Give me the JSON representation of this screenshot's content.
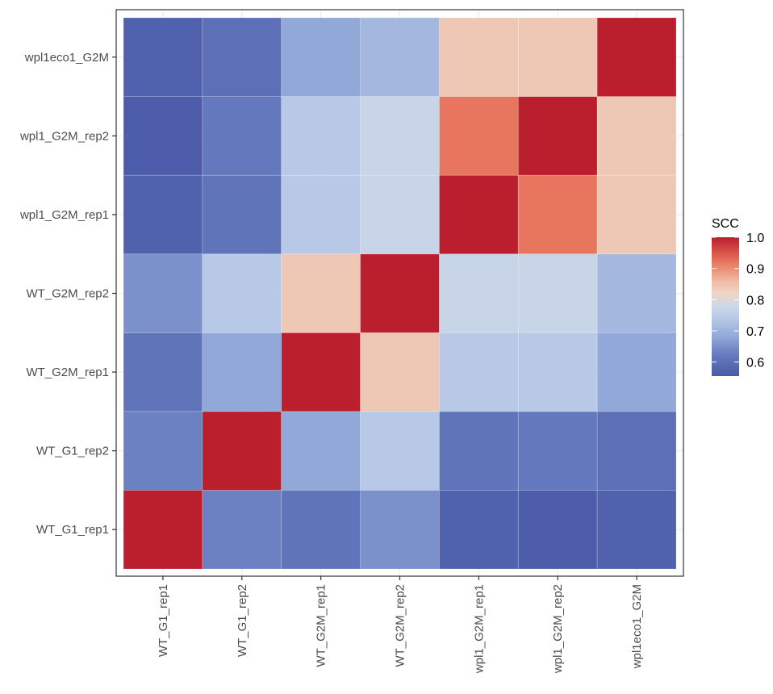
{
  "chart_data": {
    "type": "heatmap",
    "title": "",
    "xlabel": "",
    "ylabel": "",
    "x_categories": [
      "WT_G1_rep1",
      "WT_G1_rep2",
      "WT_G2M_rep1",
      "WT_G2M_rep2",
      "wpl1_G2M_rep1",
      "wpl1_G2M_rep2",
      "wpl1eco1_G2M"
    ],
    "y_categories": [
      "WT_G1_rep1",
      "WT_G1_rep2",
      "WT_G2M_rep1",
      "WT_G2M_rep2",
      "wpl1_G2M_rep1",
      "wpl1_G2M_rep2",
      "wpl1eco1_G2M"
    ],
    "values": [
      [
        1.0,
        0.63,
        0.61,
        0.65,
        0.57,
        0.56,
        0.57
      ],
      [
        0.63,
        1.0,
        0.68,
        0.74,
        0.61,
        0.62,
        0.6
      ],
      [
        0.61,
        0.68,
        1.0,
        0.84,
        0.74,
        0.74,
        0.68
      ],
      [
        0.65,
        0.74,
        0.84,
        1.0,
        0.77,
        0.77,
        0.71
      ],
      [
        0.57,
        0.61,
        0.74,
        0.77,
        1.0,
        0.92,
        0.84
      ],
      [
        0.56,
        0.62,
        0.74,
        0.77,
        0.92,
        1.0,
        0.84
      ],
      [
        0.57,
        0.6,
        0.68,
        0.71,
        0.84,
        0.84,
        1.0
      ]
    ],
    "values_note": "values[i][j] = SCC between y_categories[i] and x_categories[j]; rows listed bottom-to-top",
    "legend": {
      "title": "SCC",
      "ticks": [
        1.0,
        0.9,
        0.8,
        0.7,
        0.6
      ],
      "tick_labels": [
        "1.0",
        "0.9",
        "0.8",
        "0.7",
        "0.6"
      ],
      "range": [
        0.555,
        1.0
      ],
      "placement": "right"
    },
    "color_scale": {
      "low": "#4A5AA8",
      "mid": "#DCDDDD",
      "high": "#BB1E2D",
      "stops": [
        {
          "value": 0.555,
          "color": "#4A5AA8"
        },
        {
          "value": 0.62,
          "color": "#6479BD"
        },
        {
          "value": 0.68,
          "color": "#91A8D8"
        },
        {
          "value": 0.74,
          "color": "#B7C9E6"
        },
        {
          "value": 0.78,
          "color": "#CDD8E8"
        },
        {
          "value": 0.82,
          "color": "#EED5C7"
        },
        {
          "value": 0.86,
          "color": "#F0BBA2"
        },
        {
          "value": 0.92,
          "color": "#E8765E"
        },
        {
          "value": 1.0,
          "color": "#BB1E2D"
        }
      ]
    },
    "grid": true,
    "x_tick_rotation": "vertical"
  }
}
